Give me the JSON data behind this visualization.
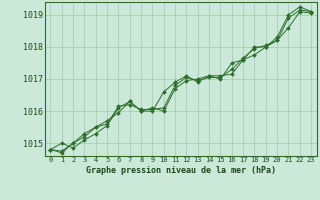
{
  "title": "Graphe pression niveau de la mer (hPa)",
  "background_color": "#cce8d8",
  "line_color": "#2d6e2d",
  "grid_color": "#99ccaa",
  "text_color": "#1a4a1a",
  "xlim": [
    -0.5,
    23.5
  ],
  "ylim": [
    1014.6,
    1019.4
  ],
  "yticks": [
    1015,
    1016,
    1017,
    1018,
    1019
  ],
  "xticks": [
    0,
    1,
    2,
    3,
    4,
    5,
    6,
    7,
    8,
    9,
    10,
    11,
    12,
    13,
    14,
    15,
    16,
    17,
    18,
    19,
    20,
    21,
    22,
    23
  ],
  "series": [
    [
      1014.8,
      1015.0,
      1014.85,
      1015.1,
      1015.3,
      1015.55,
      1016.1,
      1016.3,
      1016.0,
      1016.0,
      1016.6,
      1016.9,
      1017.1,
      1016.9,
      1017.1,
      1017.1,
      1017.15,
      1017.6,
      1018.0,
      1018.0,
      1018.3,
      1019.0,
      1019.25,
      1019.1
    ],
    [
      1014.8,
      1014.7,
      1015.0,
      1015.2,
      1015.5,
      1015.7,
      1015.95,
      1016.3,
      1016.0,
      1016.1,
      1016.0,
      1016.7,
      1016.95,
      1017.0,
      1017.1,
      1017.0,
      1017.5,
      1017.6,
      1017.75,
      1018.0,
      1018.2,
      1018.6,
      1019.1,
      1019.05
    ],
    [
      1014.8,
      1014.75,
      1015.0,
      1015.3,
      1015.5,
      1015.6,
      1016.15,
      1016.2,
      1016.05,
      1016.05,
      1016.1,
      1016.8,
      1017.05,
      1016.95,
      1017.05,
      1017.05,
      1017.3,
      1017.65,
      1017.95,
      1018.05,
      1018.2,
      1018.9,
      1019.15,
      1019.1
    ]
  ]
}
